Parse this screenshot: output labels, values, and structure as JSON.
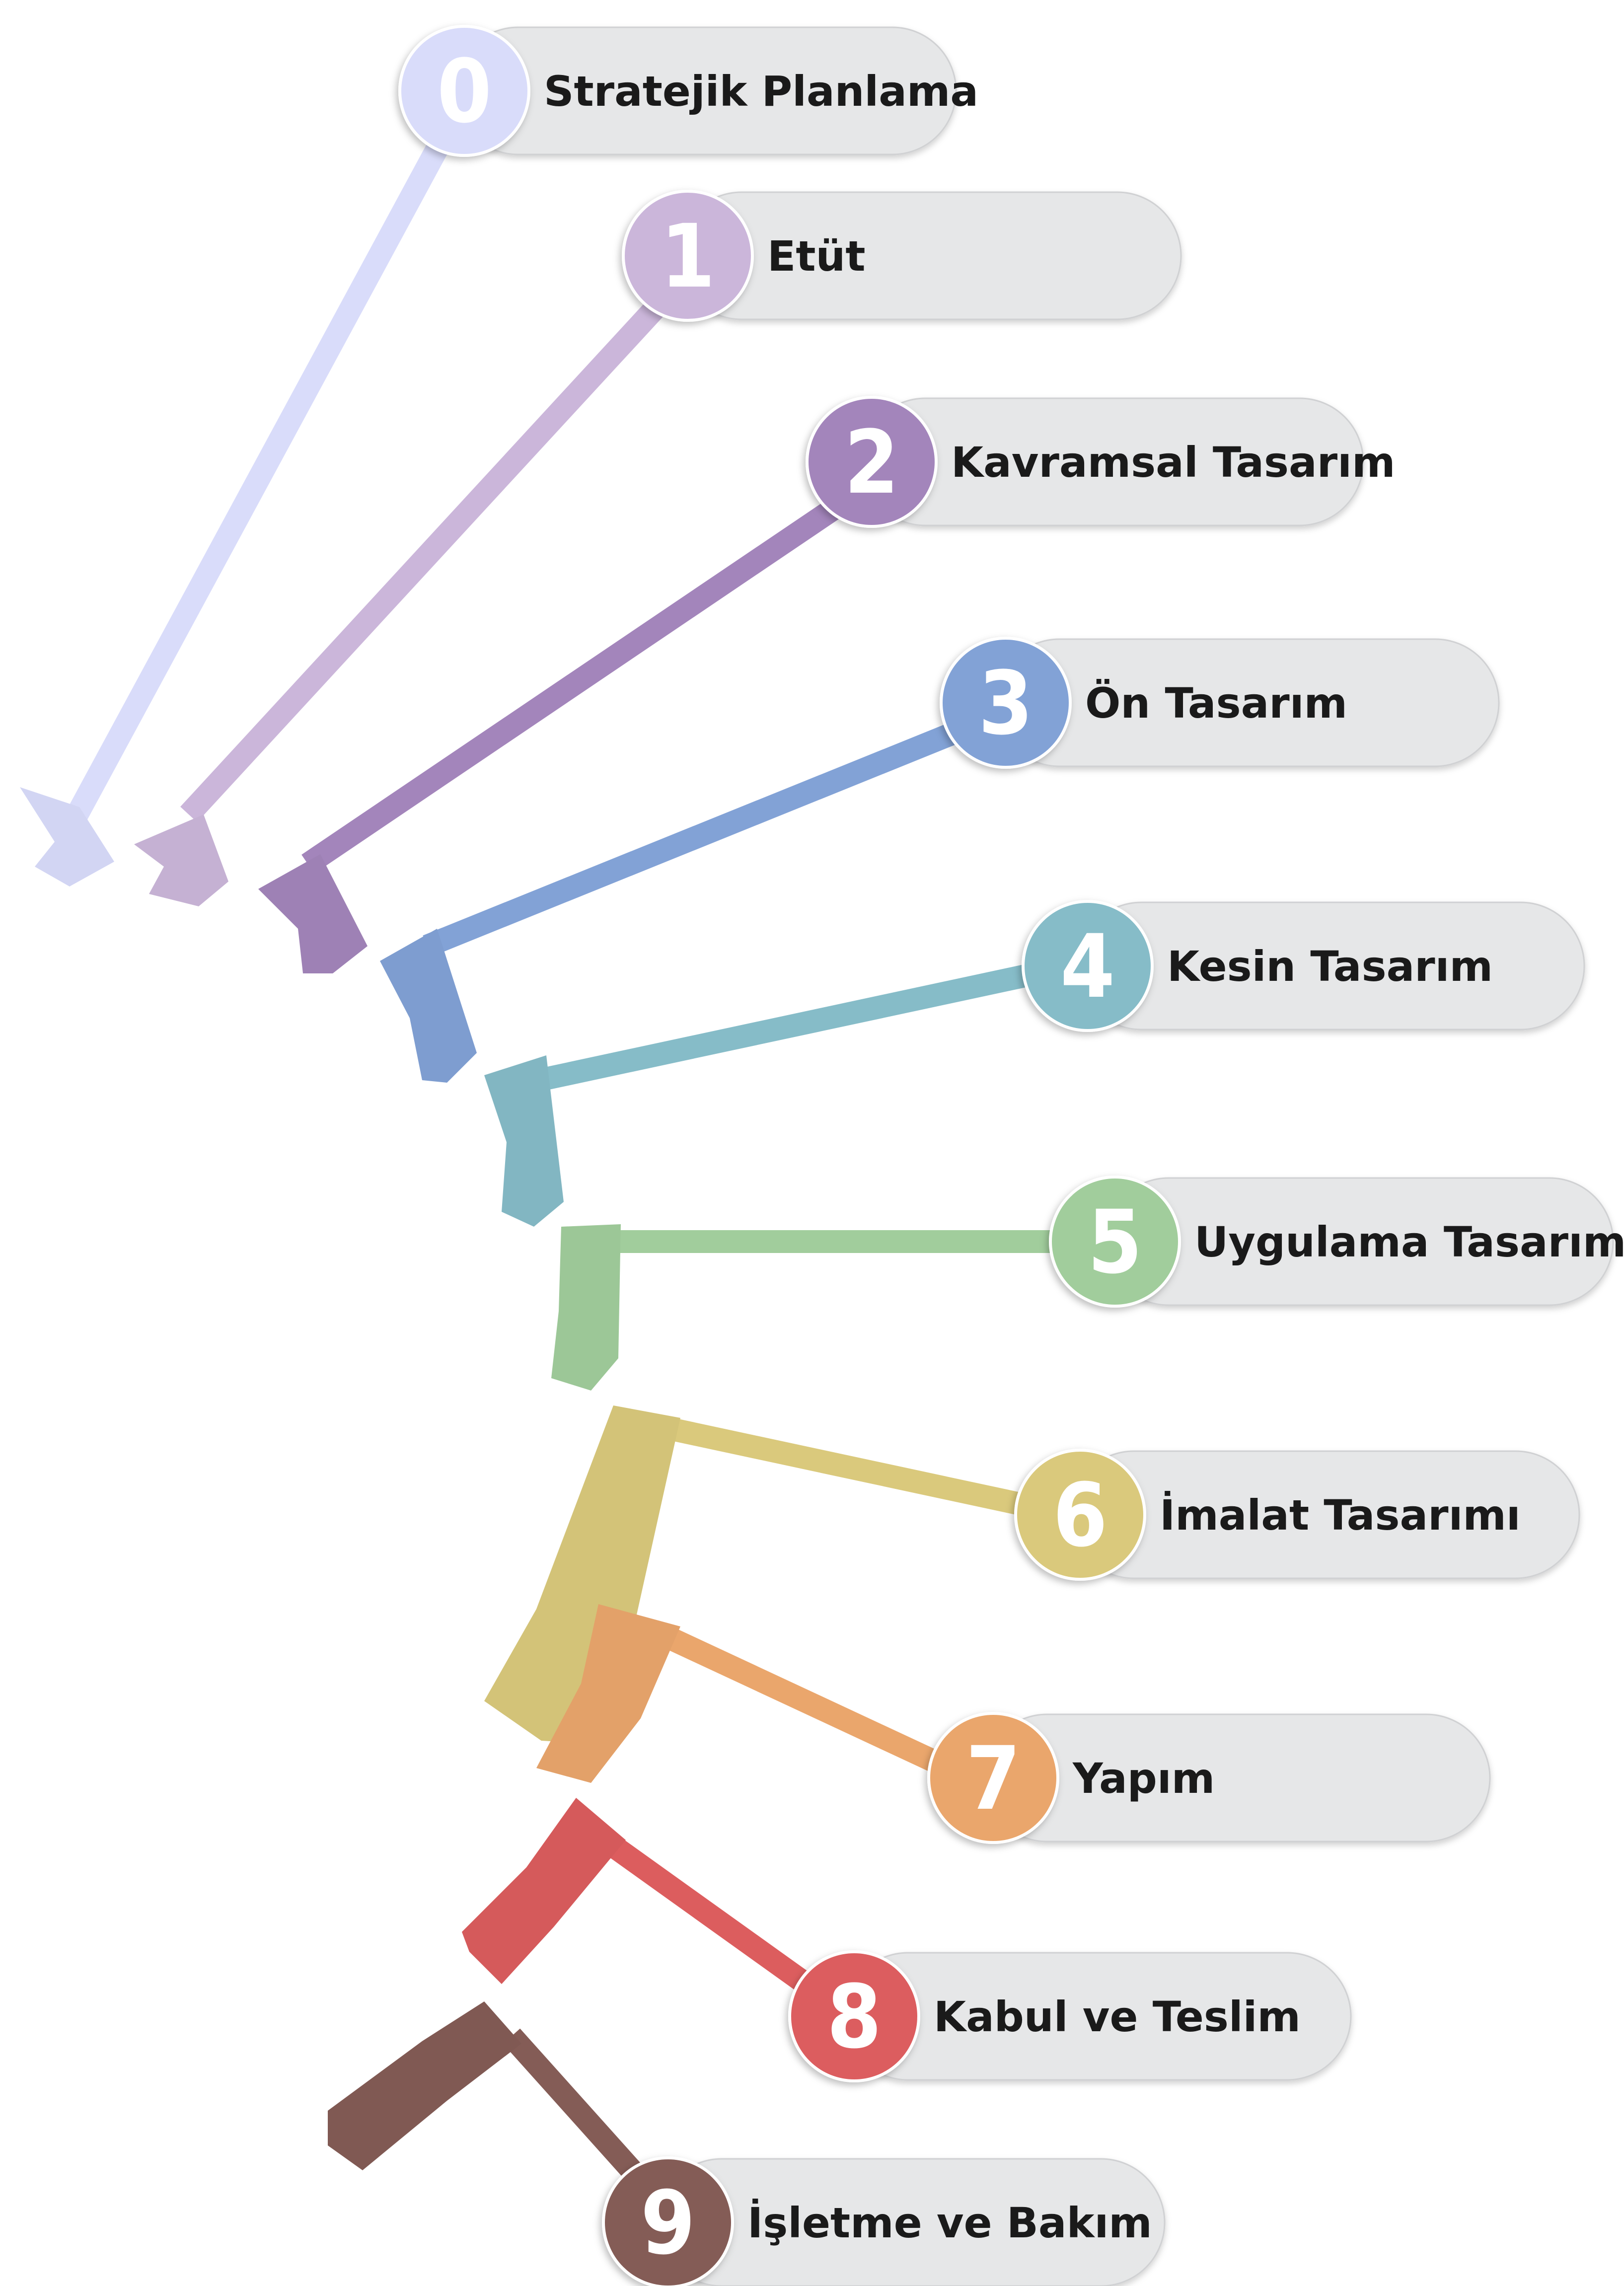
{
  "stages": [
    {
      "number": "0",
      "label": "Stratejik Planlama",
      "color": "#d9dcfa"
    },
    {
      "number": "1",
      "label": "Etüt",
      "color": "#cbb6da"
    },
    {
      "number": "2",
      "label": "Kavramsal Tasarım",
      "color": "#a385bb"
    },
    {
      "number": "3",
      "label": "Ön Tasarım",
      "color": "#82a2d6"
    },
    {
      "number": "4",
      "label": "Kesin Tasarım",
      "color": "#86bcc8"
    },
    {
      "number": "5",
      "label": "Uygulama Tasarımı",
      "color": "#a1cd9c"
    },
    {
      "number": "6",
      "label": "İmalat Tasarımı",
      "color": "#dac97c"
    },
    {
      "number": "7",
      "label": "Yapım",
      "color": "#eaa66c"
    },
    {
      "number": "8",
      "label": "Kabul ve Teslim",
      "color": "#dc5d5e"
    },
    {
      "number": "9",
      "label": "İşletme ve Bakım",
      "color": "#845c56"
    }
  ],
  "pill_color": "#e6e7e8"
}
